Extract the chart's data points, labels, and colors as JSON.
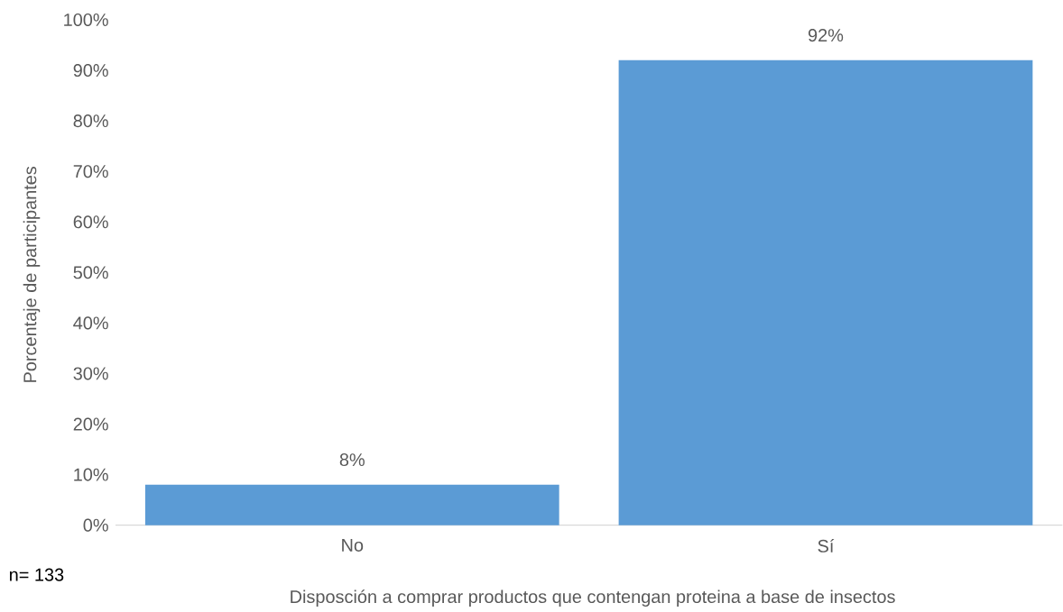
{
  "chart_data": {
    "type": "bar",
    "xlabel": "Disposción a comprar productos que contengan proteina a base de insectos",
    "ylabel": "Porcentaje de participantes",
    "categories": [
      "No",
      "Sí"
    ],
    "values": [
      8,
      92
    ],
    "color": "#5b9bd5",
    "value_labels": [
      "8%",
      "92%"
    ],
    "ylim": [
      0,
      100
    ],
    "yticks": [
      {
        "value": 0,
        "label": "0%"
      },
      {
        "value": 10,
        "label": "10%"
      },
      {
        "value": 20,
        "label": "20%"
      },
      {
        "value": 30,
        "label": "30%"
      },
      {
        "value": 40,
        "label": "40%"
      },
      {
        "value": 50,
        "label": "50%"
      },
      {
        "value": 60,
        "label": "60%"
      },
      {
        "value": 70,
        "label": "70%"
      },
      {
        "value": 80,
        "label": "80%"
      },
      {
        "value": 90,
        "label": "90%"
      },
      {
        "value": 100,
        "label": "100%"
      }
    ],
    "grid": false,
    "annotations": [
      "n= 133"
    ]
  }
}
